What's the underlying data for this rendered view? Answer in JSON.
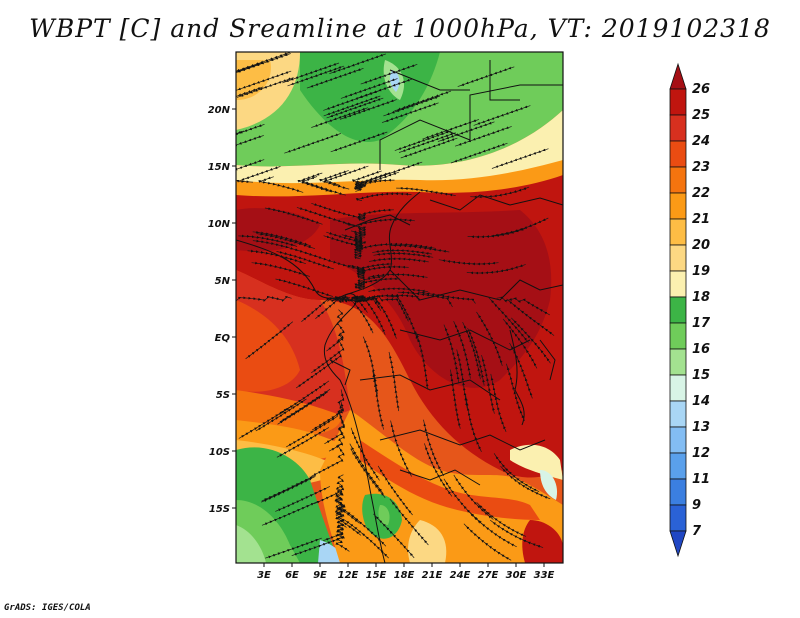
{
  "title": "WBPT [C] and Sreamline at 1000hPa, VT: 2019102318",
  "credit": "GrADS: IGES/COLA",
  "map": {
    "lon_range_deg": [
      0,
      35
    ],
    "lat_range_deg": [
      -20,
      24
    ],
    "lat_ticks": [
      "20N",
      "15N",
      "10N",
      "5N",
      "EQ",
      "5S",
      "10S",
      "15S"
    ],
    "lon_ticks": [
      "3E",
      "6E",
      "9E",
      "12E",
      "15E",
      "18E",
      "21E",
      "24E",
      "27E",
      "30E",
      "33E"
    ],
    "field": "wet-bulb potential temperature",
    "units": "C",
    "overlay": "streamlines"
  },
  "colorbar": {
    "labels": [
      "26",
      "25",
      "24",
      "23",
      "22",
      "21",
      "20",
      "19",
      "18",
      "17",
      "16",
      "15",
      "14",
      "13",
      "12",
      "11",
      "9",
      "7"
    ],
    "colors": [
      "#a50f15",
      "#c0150f",
      "#d7301f",
      "#ea4c12",
      "#f5740f",
      "#fb9a16",
      "#fdbd45",
      "#fcd883",
      "#fbf0b0",
      "#3cb446",
      "#6fcc5a",
      "#a3e290",
      "#d8f4e6",
      "#a9d6f5",
      "#83bdf3",
      "#5aa0eb",
      "#3b7fe0",
      "#2a62d6",
      "#2047c4"
    ]
  }
}
